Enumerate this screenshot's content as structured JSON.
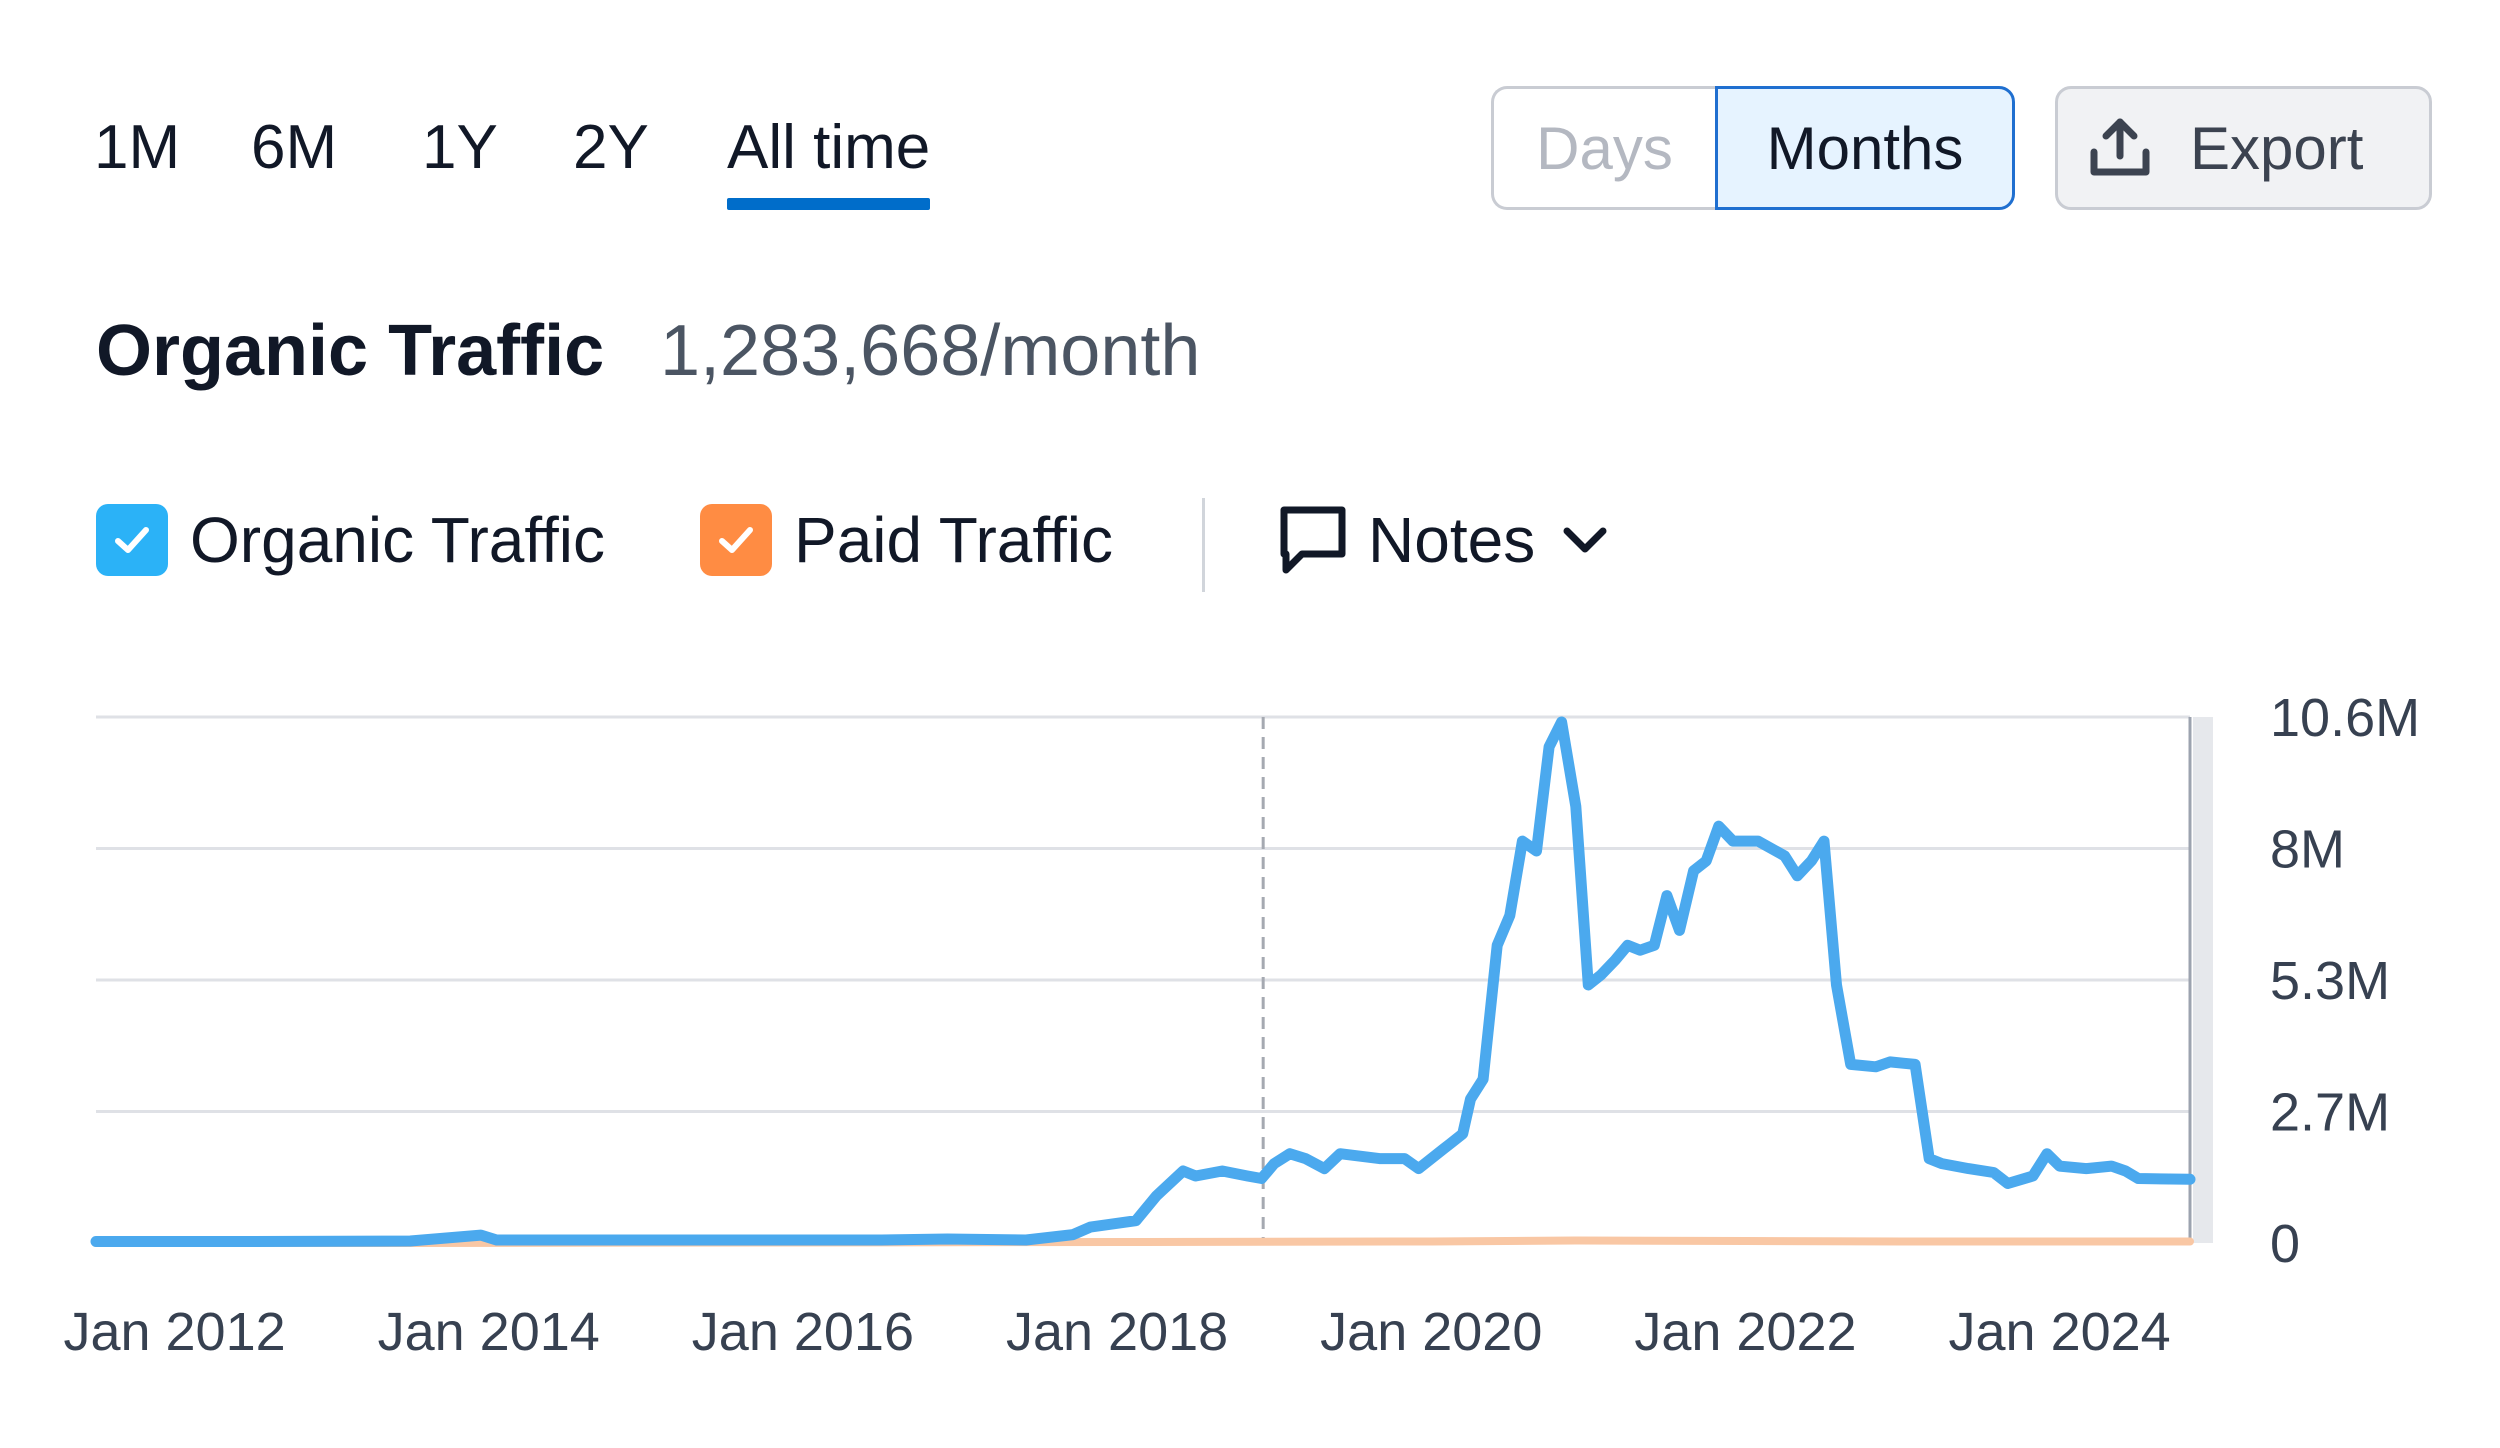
{
  "period_tabs": [
    {
      "label": "1M",
      "active": false
    },
    {
      "label": "6M",
      "active": false
    },
    {
      "label": "1Y",
      "active": false
    },
    {
      "label": "2Y",
      "active": false
    },
    {
      "label": "All time",
      "active": true
    }
  ],
  "granularity": {
    "days_label": "Days",
    "months_label": "Months",
    "selected": "Months"
  },
  "export": {
    "label": "Export",
    "icon": "upload-icon"
  },
  "heading": {
    "title": "Organic Traffic",
    "value": "1,283,668/month"
  },
  "legend": {
    "organic": {
      "label": "Organic Traffic",
      "checked": true,
      "color": "#2BB2F7"
    },
    "paid": {
      "label": "Paid Traffic",
      "checked": true,
      "color": "#FF8C43"
    },
    "notes": {
      "label": "Notes",
      "icon": "comment-icon"
    }
  },
  "chart_data": {
    "type": "line",
    "x_unit": "year (decimal)",
    "x_range": [
      2011.5,
      2024.83
    ],
    "y_range": [
      0,
      10600000
    ],
    "y_ticks": [
      {
        "value": 0,
        "label": "0"
      },
      {
        "value": 2650000,
        "label": "2.7M"
      },
      {
        "value": 5300000,
        "label": "5.3M"
      },
      {
        "value": 7950000,
        "label": "8M"
      },
      {
        "value": 10600000,
        "label": "10.6M"
      }
    ],
    "x_ticks": [
      {
        "value": 2012,
        "label": "Jan 2012"
      },
      {
        "value": 2014,
        "label": "Jan 2014"
      },
      {
        "value": 2016,
        "label": "Jan 2016"
      },
      {
        "value": 2018,
        "label": "Jan 2018"
      },
      {
        "value": 2020,
        "label": "Jan 2020"
      },
      {
        "value": 2022,
        "label": "Jan 2022"
      },
      {
        "value": 2024,
        "label": "Jan 2024"
      }
    ],
    "grid": true,
    "marker_line_x": 2018.93,
    "series": [
      {
        "name": "Organic Traffic",
        "color": "#4BA9EE",
        "points": [
          [
            2011.5,
            30000
          ],
          [
            2012.5,
            30000
          ],
          [
            2013.5,
            40000
          ],
          [
            2013.95,
            160000
          ],
          [
            2014.05,
            60000
          ],
          [
            2015.5,
            60000
          ],
          [
            2016.5,
            60000
          ],
          [
            2016.92,
            80000
          ],
          [
            2017.42,
            60000
          ],
          [
            2017.72,
            170000
          ],
          [
            2017.83,
            320000
          ],
          [
            2018.12,
            450000
          ],
          [
            2018.25,
            950000
          ],
          [
            2018.42,
            1450000
          ],
          [
            2018.5,
            1350000
          ],
          [
            2018.67,
            1450000
          ],
          [
            2018.83,
            1350000
          ],
          [
            2018.92,
            1300000
          ],
          [
            2019.0,
            1600000
          ],
          [
            2019.1,
            1800000
          ],
          [
            2019.2,
            1700000
          ],
          [
            2019.32,
            1500000
          ],
          [
            2019.42,
            1800000
          ],
          [
            2019.67,
            1700000
          ],
          [
            2019.83,
            1700000
          ],
          [
            2019.92,
            1500000
          ],
          [
            2020.08,
            1900000
          ],
          [
            2020.12,
            2000000
          ],
          [
            2020.2,
            2200000
          ],
          [
            2020.25,
            2900000
          ],
          [
            2020.33,
            3300000
          ],
          [
            2020.42,
            6000000
          ],
          [
            2020.5,
            6600000
          ],
          [
            2020.58,
            8100000
          ],
          [
            2020.67,
            7900000
          ],
          [
            2020.75,
            10000000
          ],
          [
            2020.83,
            10500000
          ],
          [
            2020.92,
            8800000
          ],
          [
            2021.0,
            5200000
          ],
          [
            2021.08,
            5400000
          ],
          [
            2021.17,
            5700000
          ],
          [
            2021.25,
            6000000
          ],
          [
            2021.33,
            5900000
          ],
          [
            2021.42,
            6000000
          ],
          [
            2021.5,
            7000000
          ],
          [
            2021.58,
            6300000
          ],
          [
            2021.67,
            7500000
          ],
          [
            2021.75,
            7700000
          ],
          [
            2021.83,
            8400000
          ],
          [
            2021.92,
            8100000
          ],
          [
            2022.08,
            8100000
          ],
          [
            2022.25,
            7800000
          ],
          [
            2022.33,
            7400000
          ],
          [
            2022.42,
            7700000
          ],
          [
            2022.5,
            8100000
          ],
          [
            2022.58,
            5200000
          ],
          [
            2022.67,
            3600000
          ],
          [
            2022.83,
            3550000
          ],
          [
            2022.92,
            3650000
          ],
          [
            2023.08,
            3600000
          ],
          [
            2023.17,
            1700000
          ],
          [
            2023.25,
            1600000
          ],
          [
            2023.42,
            1500000
          ],
          [
            2023.58,
            1420000
          ],
          [
            2023.67,
            1200000
          ],
          [
            2023.83,
            1350000
          ],
          [
            2023.92,
            1800000
          ],
          [
            2024.0,
            1550000
          ],
          [
            2024.17,
            1500000
          ],
          [
            2024.33,
            1550000
          ],
          [
            2024.42,
            1450000
          ],
          [
            2024.5,
            1300000
          ],
          [
            2024.83,
            1283668
          ]
        ]
      },
      {
        "name": "Paid Traffic",
        "color": "#F9C7A4",
        "points": [
          [
            2011.5,
            0
          ],
          [
            2013.5,
            0
          ],
          [
            2018.0,
            20000
          ],
          [
            2020.0,
            30000
          ],
          [
            2020.92,
            50000
          ],
          [
            2022.0,
            40000
          ],
          [
            2023.0,
            30000
          ],
          [
            2024.83,
            30000
          ]
        ]
      }
    ]
  }
}
